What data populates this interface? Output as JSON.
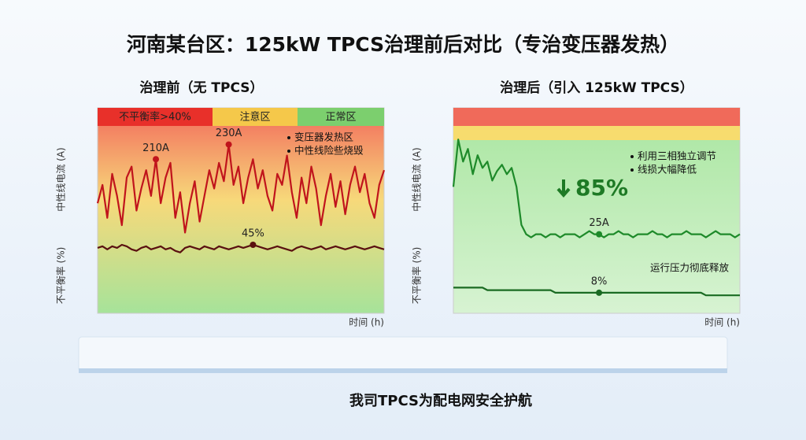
{
  "header": {
    "title": "河南某台区：125kW TPCS治理前后对比（专治变压器发热）"
  },
  "footer": {
    "text": "我司TPCS为配电网安全护航"
  },
  "chart_data": [
    {
      "type": "line",
      "title": "治理前（无 TPCS）",
      "ylabel": "中性线电流 (A)",
      "y2label": "不平衡率 (%)",
      "xlabel": "时间 (h)",
      "zones": [
        "不平衡率>40%",
        "注意区",
        "正常区"
      ],
      "notes": [
        "变压器发热区",
        "中性线险些烧毁"
      ],
      "ylim": [
        0,
        280
      ],
      "y2lim": [
        0,
        135
      ],
      "series": [
        {
          "color": "#c0141c",
          "values": [
            150,
            175,
            130,
            190,
            160,
            120,
            185,
            200,
            140,
            170,
            195,
            160,
            210,
            150,
            185,
            205,
            130,
            165,
            110,
            150,
            180,
            125,
            160,
            195,
            170,
            205,
            180,
            230,
            175,
            200,
            150,
            185,
            210,
            170,
            195,
            160,
            140,
            190,
            175,
            215,
            165,
            130,
            185,
            150,
            200,
            170,
            120,
            160,
            190,
            145,
            180,
            135,
            175,
            200,
            165,
            190,
            150,
            130,
            175,
            195
          ],
          "value_labels": [
            null,
            null,
            null,
            null,
            null,
            null,
            null,
            null,
            null,
            null,
            null,
            null,
            "210A",
            null,
            null,
            null,
            null,
            null,
            null,
            null,
            null,
            null,
            null,
            null,
            null,
            null,
            null,
            "230A",
            null,
            null,
            null,
            null,
            null,
            null,
            null,
            null,
            null,
            null,
            null,
            null,
            null,
            null,
            null,
            null,
            null,
            null,
            null,
            null,
            null,
            null,
            null,
            null,
            null,
            null,
            null,
            null,
            null,
            null,
            null,
            null
          ]
        },
        {
          "color": "#5a1010",
          "axis": "y2",
          "values": [
            43,
            44,
            42,
            44,
            43,
            45,
            44,
            42,
            41,
            43,
            44,
            42,
            43,
            44,
            42,
            43,
            41,
            40,
            43,
            44,
            43,
            42,
            44,
            43,
            42,
            44,
            43,
            42,
            43,
            44,
            43,
            44,
            45,
            44,
            43,
            42,
            43,
            44,
            43,
            42,
            41,
            43,
            44,
            43,
            42,
            43,
            44,
            42,
            43,
            44,
            43,
            42,
            43,
            44,
            43,
            42,
            43,
            44,
            43,
            42
          ],
          "value_labels": [
            null,
            null,
            null,
            null,
            null,
            null,
            null,
            null,
            null,
            null,
            null,
            null,
            null,
            null,
            null,
            null,
            null,
            null,
            null,
            null,
            null,
            null,
            null,
            null,
            null,
            null,
            null,
            null,
            null,
            null,
            null,
            null,
            "45%",
            null,
            null,
            null,
            null,
            null,
            null,
            null,
            null,
            null,
            null,
            null,
            null,
            null,
            null,
            null,
            null,
            null,
            null,
            null,
            null,
            null,
            null,
            null,
            null,
            null,
            null,
            null
          ]
        }
      ]
    },
    {
      "type": "line",
      "title": "治理后（引入 125kW TPCS）",
      "ylabel": "中性线电流 (A)",
      "y2label": "不平衡率 (%)",
      "xlabel": "时间 (h)",
      "notes": [
        "利用三相独立调节",
        "线损大幅降低"
      ],
      "callout": "85%",
      "status": "运行压力彻底释放",
      "ylim": [
        0,
        65
      ],
      "y2lim": [
        0,
        80
      ],
      "series": [
        {
          "color": "#1e8a2a",
          "values": [
            40,
            55,
            48,
            52,
            44,
            50,
            46,
            48,
            42,
            45,
            47,
            44,
            46,
            40,
            28,
            25,
            24,
            25,
            25,
            24,
            25,
            25,
            24,
            25,
            25,
            25,
            24,
            25,
            26,
            25,
            25,
            24,
            25,
            25,
            26,
            25,
            25,
            24,
            25,
            25,
            25,
            26,
            25,
            25,
            24,
            25,
            25,
            25,
            26,
            25,
            25,
            25,
            24,
            25,
            26,
            25,
            25,
            25,
            24,
            25
          ],
          "value_labels": [
            null,
            null,
            null,
            null,
            null,
            null,
            null,
            null,
            null,
            null,
            null,
            null,
            null,
            null,
            null,
            null,
            null,
            null,
            null,
            null,
            null,
            null,
            null,
            null,
            null,
            null,
            null,
            null,
            null,
            null,
            "25A",
            null,
            null,
            null,
            null,
            null,
            null,
            null,
            null,
            null,
            null,
            null,
            null,
            null,
            null,
            null,
            null,
            null,
            null,
            null,
            null,
            null,
            null,
            null,
            null,
            null,
            null,
            null,
            null,
            null
          ]
        },
        {
          "color": "#1a6b22",
          "axis": "y2",
          "values": [
            10,
            10,
            10,
            10,
            10,
            10,
            10,
            9,
            9,
            9,
            9,
            9,
            9,
            9,
            9,
            9,
            9,
            9,
            9,
            9,
            9,
            8,
            8,
            8,
            8,
            8,
            8,
            8,
            8,
            8,
            8,
            8,
            8,
            8,
            8,
            8,
            8,
            8,
            8,
            8,
            8,
            8,
            8,
            8,
            8,
            8,
            8,
            8,
            8,
            8,
            8,
            8,
            7,
            7,
            7,
            7,
            7,
            7,
            7,
            7
          ],
          "value_labels": [
            null,
            null,
            null,
            null,
            null,
            null,
            null,
            null,
            null,
            null,
            null,
            null,
            null,
            null,
            null,
            null,
            null,
            null,
            null,
            null,
            null,
            null,
            null,
            null,
            null,
            null,
            null,
            null,
            null,
            null,
            "8%",
            null,
            null,
            null,
            null,
            null,
            null,
            null,
            null,
            null,
            null,
            null,
            null,
            null,
            null,
            null,
            null,
            null,
            null,
            null,
            null,
            null,
            null,
            null,
            null,
            null,
            null,
            null,
            null,
            null
          ]
        }
      ]
    }
  ]
}
